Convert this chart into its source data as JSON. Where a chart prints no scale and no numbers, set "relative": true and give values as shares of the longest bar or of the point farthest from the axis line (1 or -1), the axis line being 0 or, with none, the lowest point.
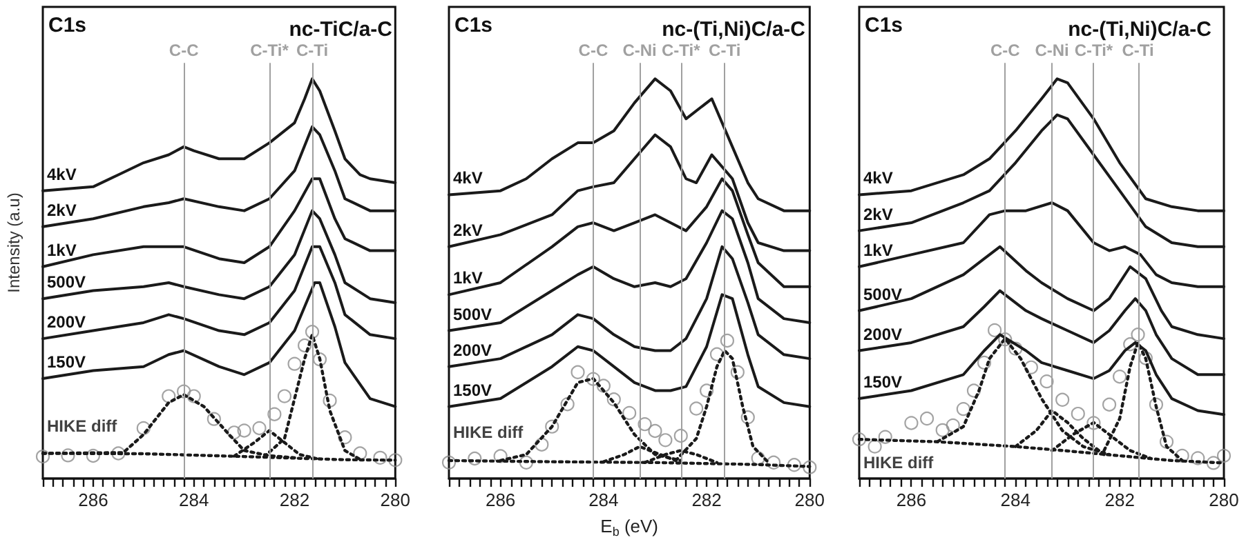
{
  "chart_data": [
    {
      "type": "line",
      "relative": true,
      "title": "nc-TiC/a-C",
      "annotations": [
        "C1s"
      ],
      "ylabel": "Intensity (a.u)",
      "marker": "none",
      "line_style": "solid",
      "xlim": [
        287,
        280
      ],
      "xticks": [
        {
          "value": 287,
          "label": null
        },
        {
          "value": 286.8,
          "label": null
        },
        {
          "value": 286.6,
          "label": null
        },
        {
          "value": 286.4,
          "label": null
        },
        {
          "value": 286.2,
          "label": null
        },
        286,
        {
          "value": 285.8,
          "label": null
        },
        {
          "value": 285.6,
          "label": null
        },
        {
          "value": 285.4,
          "label": null
        },
        {
          "value": 285.2,
          "label": null
        },
        {
          "value": 285,
          "label": null
        },
        {
          "value": 284.8,
          "label": null
        },
        {
          "value": 284.6,
          "label": null
        },
        {
          "value": 284.4,
          "label": null
        },
        {
          "value": 284.2,
          "label": null
        },
        284,
        {
          "value": 283.8,
          "label": null
        },
        {
          "value": 283.6,
          "label": null
        },
        {
          "value": 283.4,
          "label": null
        },
        {
          "value": 283.2,
          "label": null
        },
        {
          "value": 283,
          "label": null
        },
        {
          "value": 282.8,
          "label": null
        },
        {
          "value": 282.6,
          "label": null
        },
        {
          "value": 282.4,
          "label": null
        },
        {
          "value": 282.2,
          "label": null
        },
        282,
        {
          "value": 281.8,
          "label": null
        },
        {
          "value": 281.6,
          "label": null
        },
        {
          "value": 281.4,
          "label": null
        },
        {
          "value": 281.2,
          "label": null
        },
        {
          "value": 281,
          "label": null
        },
        {
          "value": 280.8,
          "label": null
        },
        {
          "value": 280.6,
          "label": null
        },
        {
          "value": 280.4,
          "label": null
        },
        {
          "value": 280.2,
          "label": null
        },
        280
      ],
      "ref_lines": [
        {
          "axis": "x",
          "value": 284.2,
          "label": "C-C",
          "color": "#a0a0a0"
        },
        {
          "axis": "x",
          "value": 282.5,
          "label": "C-Ti*",
          "color": "#a0a0a0"
        },
        {
          "axis": "x",
          "value": 281.65,
          "label": "C-Ti",
          "color": "#a0a0a0"
        }
      ],
      "series": [
        {
          "name": "4kV",
          "color": "#1a1a1a",
          "x": [
            287,
            286,
            285.5,
            285,
            284.5,
            284.2,
            284,
            283.5,
            283,
            282.5,
            282,
            281.8,
            281.65,
            281.5,
            281.2,
            281,
            280.7,
            280.5,
            280
          ],
          "values": [
            0.72,
            0.73,
            0.76,
            0.79,
            0.81,
            0.83,
            0.82,
            0.8,
            0.8,
            0.84,
            0.89,
            0.95,
            1,
            0.97,
            0.87,
            0.8,
            0.76,
            0.75,
            0.74
          ]
        },
        {
          "name": "2kV",
          "color": "#1a1a1a",
          "x": [
            287,
            286,
            285,
            284.5,
            284.2,
            283.5,
            283,
            282.5,
            282,
            281.65,
            281.5,
            281.2,
            281,
            280.5,
            280
          ],
          "values": [
            0.63,
            0.65,
            0.68,
            0.69,
            0.7,
            0.68,
            0.67,
            0.7,
            0.77,
            0.88,
            0.86,
            0.77,
            0.7,
            0.67,
            0.67
          ]
        },
        {
          "name": "1kV",
          "color": "#1a1a1a",
          "x": [
            287,
            286,
            285,
            284.5,
            284.2,
            283.5,
            283,
            282.5,
            282,
            281.65,
            281.5,
            281.2,
            281,
            280.5,
            280
          ],
          "values": [
            0.53,
            0.56,
            0.58,
            0.58,
            0.58,
            0.55,
            0.54,
            0.58,
            0.67,
            0.75,
            0.75,
            0.65,
            0.6,
            0.57,
            0.57
          ]
        },
        {
          "name": "500V",
          "color": "#1a1a1a",
          "x": [
            287,
            286,
            285,
            284.5,
            284.2,
            283.5,
            283,
            282.5,
            282,
            281.65,
            281.5,
            281.2,
            281,
            280.5,
            280
          ],
          "values": [
            0.45,
            0.47,
            0.48,
            0.49,
            0.48,
            0.46,
            0.45,
            0.48,
            0.56,
            0.67,
            0.65,
            0.56,
            0.49,
            0.45,
            0.44
          ]
        },
        {
          "name": "200V",
          "color": "#1a1a1a",
          "x": [
            287,
            286,
            285,
            284.5,
            284.2,
            283.5,
            283,
            282.5,
            282,
            281.65,
            281.5,
            281.2,
            281,
            280.5,
            280
          ],
          "values": [
            0.35,
            0.37,
            0.39,
            0.41,
            0.4,
            0.37,
            0.36,
            0.39,
            0.47,
            0.58,
            0.58,
            0.49,
            0.41,
            0.36,
            0.35
          ]
        },
        {
          "name": "150V",
          "color": "#1a1a1a",
          "x": [
            287,
            286,
            285,
            284.5,
            284.2,
            283.5,
            283,
            282.5,
            282,
            281.6,
            281.5,
            281.2,
            281,
            280.5,
            280
          ],
          "values": [
            0.25,
            0.27,
            0.28,
            0.31,
            0.32,
            0.28,
            0.26,
            0.29,
            0.37,
            0.49,
            0.49,
            0.38,
            0.29,
            0.2,
            0.18
          ]
        },
        {
          "name": "HIKE diff",
          "type": "scatter",
          "marker": "circle",
          "color": "#8c8c8c",
          "x": [
            287,
            286.5,
            286,
            285.5,
            285,
            284.5,
            284.2,
            284,
            283.6,
            283.2,
            283,
            282.7,
            282.4,
            282.2,
            282,
            281.8,
            281.65,
            281.5,
            281.3,
            281,
            280.7,
            280.3,
            280
          ],
          "values": [
            0.055,
            0.058,
            0.057,
            0.063,
            0.126,
            0.206,
            0.218,
            0.206,
            0.149,
            0.115,
            0.12,
            0.126,
            0.161,
            0.206,
            0.287,
            0.333,
            0.367,
            0.298,
            0.195,
            0.103,
            0.063,
            0.052,
            0.046
          ]
        },
        {
          "color": "#1a1a1a",
          "line_style": "dotted",
          "x": [
            287,
            285,
            283,
            281,
            280
          ],
          "values": [
            0.063,
            0.062,
            0.055,
            0.047,
            0.046
          ]
        },
        {
          "color": "#1a1a1a",
          "line_style": "dotted",
          "x": [
            287,
            285.4,
            285,
            284.5,
            284.2,
            283.8,
            283.3,
            283,
            282.5,
            282
          ],
          "values": [
            0.063,
            0.065,
            0.11,
            0.19,
            0.21,
            0.18,
            0.11,
            0.07,
            0.057,
            0.052
          ]
        },
        {
          "color": "#1a1a1a",
          "line_style": "dotted",
          "x": [
            283.2,
            282.8,
            282.5,
            282.2,
            281.9,
            281.5
          ],
          "values": [
            0.056,
            0.09,
            0.12,
            0.09,
            0.06,
            0.048
          ]
        },
        {
          "color": "#1a1a1a",
          "line_style": "dotted",
          "x": [
            282.6,
            282.2,
            282,
            281.8,
            281.65,
            281.5,
            281.3,
            281,
            280.7
          ],
          "values": [
            0.055,
            0.1,
            0.2,
            0.3,
            0.36,
            0.3,
            0.17,
            0.07,
            0.048
          ]
        }
      ]
    },
    {
      "type": "line",
      "relative": true,
      "title": "nc-(Ti,Ni)C/a-C",
      "annotations": [
        "C1s"
      ],
      "xlabel": "E$_{b}$ (eV)",
      "marker": "none",
      "line_style": "solid",
      "xlim": [
        287,
        280
      ],
      "xticks": [
        {
          "value": 287,
          "label": null
        },
        {
          "value": 286.8,
          "label": null
        },
        {
          "value": 286.6,
          "label": null
        },
        {
          "value": 286.4,
          "label": null
        },
        {
          "value": 286.2,
          "label": null
        },
        286,
        {
          "value": 285.8,
          "label": null
        },
        {
          "value": 285.6,
          "label": null
        },
        {
          "value": 285.4,
          "label": null
        },
        {
          "value": 285.2,
          "label": null
        },
        {
          "value": 285,
          "label": null
        },
        {
          "value": 284.8,
          "label": null
        },
        {
          "value": 284.6,
          "label": null
        },
        {
          "value": 284.4,
          "label": null
        },
        {
          "value": 284.2,
          "label": null
        },
        284,
        {
          "value": 283.8,
          "label": null
        },
        {
          "value": 283.6,
          "label": null
        },
        {
          "value": 283.4,
          "label": null
        },
        {
          "value": 283.2,
          "label": null
        },
        {
          "value": 283,
          "label": null
        },
        {
          "value": 282.8,
          "label": null
        },
        {
          "value": 282.6,
          "label": null
        },
        {
          "value": 282.4,
          "label": null
        },
        {
          "value": 282.2,
          "label": null
        },
        282,
        {
          "value": 281.8,
          "label": null
        },
        {
          "value": 281.6,
          "label": null
        },
        {
          "value": 281.4,
          "label": null
        },
        {
          "value": 281.2,
          "label": null
        },
        {
          "value": 281,
          "label": null
        },
        {
          "value": 280.8,
          "label": null
        },
        {
          "value": 280.6,
          "label": null
        },
        {
          "value": 280.4,
          "label": null
        },
        {
          "value": 280.2,
          "label": null
        },
        280
      ],
      "ref_lines": [
        {
          "axis": "x",
          "value": 284.2,
          "label": "C-C",
          "color": "#a0a0a0"
        },
        {
          "axis": "x",
          "value": 283.3,
          "label": "C-Ni",
          "color": "#a0a0a0"
        },
        {
          "axis": "x",
          "value": 282.5,
          "label": "C-Ti*",
          "color": "#a0a0a0"
        },
        {
          "axis": "x",
          "value": 281.65,
          "label": "C-Ti",
          "color": "#a0a0a0"
        }
      ],
      "series": [
        {
          "name": "4kV",
          "color": "#1a1a1a",
          "x": [
            287,
            286,
            285.5,
            285,
            284.5,
            284.2,
            283.8,
            283.4,
            283,
            282.7,
            282.4,
            281.9,
            281.5,
            281.2,
            281,
            280.5,
            280
          ],
          "values": [
            0.71,
            0.72,
            0.75,
            0.8,
            0.84,
            0.84,
            0.87,
            0.94,
            1,
            0.97,
            0.9,
            0.95,
            0.83,
            0.74,
            0.7,
            0.67,
            0.67
          ]
        },
        {
          "name": "2kV",
          "color": "#1a1a1a",
          "x": [
            287,
            286,
            285,
            284.5,
            284.2,
            283.8,
            283.4,
            283,
            282.7,
            282.4,
            282.2,
            281.9,
            281.5,
            281.2,
            281,
            280.5,
            280
          ],
          "values": [
            0.58,
            0.61,
            0.66,
            0.72,
            0.73,
            0.74,
            0.8,
            0.86,
            0.83,
            0.75,
            0.74,
            0.81,
            0.75,
            0.64,
            0.59,
            0.57,
            0.57
          ]
        },
        {
          "name": "1kV",
          "color": "#1a1a1a",
          "x": [
            287,
            286,
            285,
            284.5,
            284.2,
            283.8,
            283.4,
            283,
            282.7,
            282.4,
            282,
            281.7,
            281.5,
            281.2,
            281,
            280.5,
            280
          ],
          "values": [
            0.46,
            0.49,
            0.58,
            0.63,
            0.64,
            0.62,
            0.64,
            0.66,
            0.64,
            0.62,
            0.68,
            0.75,
            0.72,
            0.61,
            0.54,
            0.48,
            0.48
          ]
        },
        {
          "name": "500V",
          "color": "#1a1a1a",
          "x": [
            287,
            286,
            285,
            284.5,
            284.2,
            283.8,
            283.4,
            283,
            282.7,
            282.4,
            282,
            281.7,
            281.5,
            281.2,
            281,
            280.5,
            280
          ],
          "values": [
            0.37,
            0.39,
            0.47,
            0.51,
            0.53,
            0.5,
            0.48,
            0.49,
            0.48,
            0.5,
            0.59,
            0.67,
            0.65,
            0.54,
            0.45,
            0.4,
            0.39
          ]
        },
        {
          "name": "200V",
          "color": "#1a1a1a",
          "x": [
            287,
            286,
            285,
            284.5,
            284.2,
            283.8,
            283.4,
            283,
            282.7,
            282.4,
            282,
            281.7,
            281.5,
            281.2,
            281,
            280.5,
            280
          ],
          "values": [
            0.28,
            0.3,
            0.36,
            0.41,
            0.4,
            0.36,
            0.33,
            0.32,
            0.32,
            0.35,
            0.45,
            0.58,
            0.55,
            0.44,
            0.36,
            0.31,
            0.3
          ]
        },
        {
          "name": "150V",
          "color": "#1a1a1a",
          "x": [
            287,
            286,
            285,
            284.5,
            284.2,
            283.8,
            283.4,
            283,
            282.7,
            282.4,
            282,
            281.7,
            281.5,
            281.2,
            281,
            280.5,
            280
          ],
          "values": [
            0.18,
            0.2,
            0.28,
            0.33,
            0.32,
            0.28,
            0.24,
            0.22,
            0.22,
            0.23,
            0.33,
            0.46,
            0.45,
            0.31,
            0.23,
            0.19,
            0.18
          ]
        },
        {
          "name": "HIKE diff",
          "type": "scatter",
          "marker": "circle",
          "color": "#8c8c8c",
          "x": [
            287,
            286.5,
            286,
            285.5,
            285.2,
            285,
            284.7,
            284.5,
            284.2,
            284,
            283.8,
            283.5,
            283.2,
            283,
            282.8,
            282.5,
            282.2,
            282,
            281.8,
            281.6,
            281.4,
            281.2,
            281,
            280.7,
            280.3,
            280
          ],
          "values": [
            0.04,
            0.05,
            0.056,
            0.04,
            0.085,
            0.13,
            0.186,
            0.266,
            0.249,
            0.232,
            0.198,
            0.164,
            0.136,
            0.119,
            0.096,
            0.107,
            0.175,
            0.22,
            0.311,
            0.345,
            0.266,
            0.153,
            0.051,
            0.04,
            0.034,
            0.028
          ]
        },
        {
          "color": "#1a1a1a",
          "line_style": "dotted",
          "x": [
            287,
            285,
            283,
            281,
            280
          ],
          "values": [
            0.045,
            0.042,
            0.04,
            0.035,
            0.03
          ]
        },
        {
          "color": "#1a1a1a",
          "line_style": "dotted",
          "x": [
            286,
            285.5,
            285,
            284.5,
            284.2,
            283.8,
            283.4,
            283,
            282.5
          ],
          "values": [
            0.045,
            0.06,
            0.13,
            0.24,
            0.25,
            0.19,
            0.11,
            0.06,
            0.045
          ]
        },
        {
          "color": "#1a1a1a",
          "line_style": "dotted",
          "x": [
            284,
            283.6,
            283.3,
            283,
            282.6
          ],
          "values": [
            0.042,
            0.06,
            0.08,
            0.065,
            0.045
          ]
        },
        {
          "color": "#1a1a1a",
          "line_style": "dotted",
          "x": [
            283.2,
            282.8,
            282.5,
            282.2,
            281.8
          ],
          "values": [
            0.04,
            0.06,
            0.07,
            0.06,
            0.04
          ]
        },
        {
          "color": "#1a1a1a",
          "line_style": "dotted",
          "x": [
            282.6,
            282.2,
            282,
            281.8,
            281.65,
            281.5,
            281.3,
            281.1,
            280.8
          ],
          "values": [
            0.045,
            0.1,
            0.18,
            0.28,
            0.32,
            0.3,
            0.18,
            0.08,
            0.04
          ]
        }
      ]
    },
    {
      "type": "line",
      "relative": true,
      "title": "nc-(Ti,Ni)C/a-C",
      "annotations": [
        "C1s"
      ],
      "marker": "none",
      "line_style": "solid",
      "xlim": [
        287,
        280
      ],
      "xticks": [
        {
          "value": 287,
          "label": null
        },
        {
          "value": 286.8,
          "label": null
        },
        {
          "value": 286.6,
          "label": null
        },
        {
          "value": 286.4,
          "label": null
        },
        {
          "value": 286.2,
          "label": null
        },
        286,
        {
          "value": 285.8,
          "label": null
        },
        {
          "value": 285.6,
          "label": null
        },
        {
          "value": 285.4,
          "label": null
        },
        {
          "value": 285.2,
          "label": null
        },
        {
          "value": 285,
          "label": null
        },
        {
          "value": 284.8,
          "label": null
        },
        {
          "value": 284.6,
          "label": null
        },
        {
          "value": 284.4,
          "label": null
        },
        {
          "value": 284.2,
          "label": null
        },
        284,
        {
          "value": 283.8,
          "label": null
        },
        {
          "value": 283.6,
          "label": null
        },
        {
          "value": 283.4,
          "label": null
        },
        {
          "value": 283.2,
          "label": null
        },
        {
          "value": 283,
          "label": null
        },
        {
          "value": 282.8,
          "label": null
        },
        {
          "value": 282.6,
          "label": null
        },
        {
          "value": 282.4,
          "label": null
        },
        {
          "value": 282.2,
          "label": null
        },
        282,
        {
          "value": 281.8,
          "label": null
        },
        {
          "value": 281.6,
          "label": null
        },
        {
          "value": 281.4,
          "label": null
        },
        {
          "value": 281.2,
          "label": null
        },
        {
          "value": 281,
          "label": null
        },
        {
          "value": 280.8,
          "label": null
        },
        {
          "value": 280.6,
          "label": null
        },
        {
          "value": 280.4,
          "label": null
        },
        {
          "value": 280.2,
          "label": null
        },
        280
      ],
      "ref_lines": [
        {
          "axis": "x",
          "value": 284.2,
          "label": "C-C",
          "color": "#a0a0a0"
        },
        {
          "axis": "x",
          "value": 283.3,
          "label": "C-Ni",
          "color": "#a0a0a0"
        },
        {
          "axis": "x",
          "value": 282.5,
          "label": "C-Ti*",
          "color": "#a0a0a0"
        },
        {
          "axis": "x",
          "value": 281.65,
          "label": "C-Ti",
          "color": "#a0a0a0"
        }
      ],
      "series": [
        {
          "name": "4kV",
          "color": "#1a1a1a",
          "x": [
            287,
            286,
            285,
            284.5,
            284,
            283.5,
            283.2,
            283,
            282.5,
            282,
            281.5,
            281,
            280.5,
            280
          ],
          "values": [
            0.71,
            0.72,
            0.76,
            0.8,
            0.87,
            0.95,
            1,
            0.99,
            0.9,
            0.79,
            0.7,
            0.68,
            0.67,
            0.67
          ]
        },
        {
          "name": "2kV",
          "color": "#1a1a1a",
          "x": [
            287,
            286,
            285,
            284.5,
            284,
            283.5,
            283.2,
            283,
            282.5,
            282,
            281.5,
            281,
            280.5,
            280
          ],
          "values": [
            0.62,
            0.64,
            0.69,
            0.72,
            0.79,
            0.87,
            0.91,
            0.9,
            0.81,
            0.72,
            0.63,
            0.59,
            0.58,
            0.58
          ]
        },
        {
          "name": "1kV",
          "color": "#1a1a1a",
          "x": [
            287,
            286,
            285,
            284.5,
            284.2,
            283.8,
            283.3,
            283,
            282.5,
            282.2,
            281.9,
            281.6,
            281.3,
            281,
            280.5,
            280
          ],
          "values": [
            0.53,
            0.56,
            0.59,
            0.66,
            0.67,
            0.67,
            0.69,
            0.67,
            0.59,
            0.57,
            0.58,
            0.56,
            0.51,
            0.49,
            0.48,
            0.48
          ]
        },
        {
          "name": "500V",
          "color": "#1a1a1a",
          "x": [
            287,
            286,
            285,
            284.6,
            284.3,
            283.8,
            283.5,
            283,
            282.5,
            282.2,
            281.8,
            281.5,
            281.2,
            281,
            280.5,
            280
          ],
          "values": [
            0.42,
            0.45,
            0.51,
            0.55,
            0.58,
            0.52,
            0.49,
            0.45,
            0.42,
            0.45,
            0.53,
            0.5,
            0.42,
            0.38,
            0.36,
            0.35
          ]
        },
        {
          "name": "200V",
          "color": "#1a1a1a",
          "x": [
            287,
            286,
            285,
            284.6,
            284.3,
            283.8,
            283.5,
            283,
            282.5,
            282.2,
            281.9,
            281.7,
            281.5,
            281.3,
            281,
            280.5,
            280
          ],
          "values": [
            0.32,
            0.34,
            0.38,
            0.43,
            0.47,
            0.42,
            0.4,
            0.37,
            0.34,
            0.37,
            0.42,
            0.45,
            0.42,
            0.36,
            0.3,
            0.26,
            0.26
          ]
        },
        {
          "name": "150V",
          "color": "#1a1a1a",
          "x": [
            287,
            286,
            285,
            284.6,
            284.3,
            283.8,
            283.5,
            283,
            282.5,
            282.2,
            281.9,
            281.7,
            281.5,
            281.3,
            281,
            280.5,
            280
          ],
          "values": [
            0.2,
            0.22,
            0.26,
            0.32,
            0.36,
            0.32,
            0.29,
            0.27,
            0.25,
            0.27,
            0.32,
            0.34,
            0.32,
            0.26,
            0.2,
            0.17,
            0.16
          ]
        },
        {
          "name": "HIKE diff",
          "type": "scatter",
          "marker": "circle",
          "color": "#8c8c8c",
          "x": [
            287,
            286.7,
            286.5,
            286,
            285.7,
            285.4,
            285.2,
            285,
            284.8,
            284.6,
            284.4,
            284.2,
            284,
            283.7,
            283.4,
            283.1,
            282.8,
            282.5,
            282.2,
            282,
            281.8,
            281.65,
            281.5,
            281.3,
            281.1,
            280.8,
            280.5,
            280.2,
            280
          ],
          "values": [
            0.098,
            0.08,
            0.104,
            0.139,
            0.15,
            0.121,
            0.133,
            0.174,
            0.22,
            0.29,
            0.371,
            0.348,
            0.325,
            0.278,
            0.243,
            0.197,
            0.162,
            0.139,
            0.185,
            0.255,
            0.336,
            0.36,
            0.301,
            0.185,
            0.092,
            0.057,
            0.051,
            0.039,
            0.057
          ]
        },
        {
          "color": "#1a1a1a",
          "line_style": "dotted",
          "x": [
            287,
            285.5,
            284,
            283,
            282,
            281,
            280
          ],
          "values": [
            0.098,
            0.092,
            0.08,
            0.069,
            0.057,
            0.045,
            0.039
          ]
        },
        {
          "color": "#1a1a1a",
          "line_style": "dotted",
          "x": [
            285.5,
            285,
            284.7,
            284.5,
            284.2,
            283.9,
            283.5,
            283.1,
            282.7,
            282.2
          ],
          "values": [
            0.092,
            0.13,
            0.22,
            0.3,
            0.35,
            0.3,
            0.2,
            0.12,
            0.08,
            0.06
          ]
        },
        {
          "color": "#1a1a1a",
          "line_style": "dotted",
          "x": [
            284,
            283.6,
            283.3,
            283,
            282.7,
            282.3
          ],
          "values": [
            0.08,
            0.12,
            0.17,
            0.14,
            0.1,
            0.06
          ]
        },
        {
          "color": "#1a1a1a",
          "line_style": "dotted",
          "x": [
            283.3,
            282.9,
            282.5,
            282.2,
            281.8,
            281.4
          ],
          "values": [
            0.07,
            0.11,
            0.14,
            0.11,
            0.07,
            0.05
          ]
        },
        {
          "color": "#1a1a1a",
          "line_style": "dotted",
          "x": [
            282.3,
            282,
            281.8,
            281.65,
            281.5,
            281.3,
            281.1,
            280.8
          ],
          "values": [
            0.07,
            0.15,
            0.28,
            0.34,
            0.3,
            0.18,
            0.08,
            0.045
          ]
        }
      ]
    }
  ]
}
